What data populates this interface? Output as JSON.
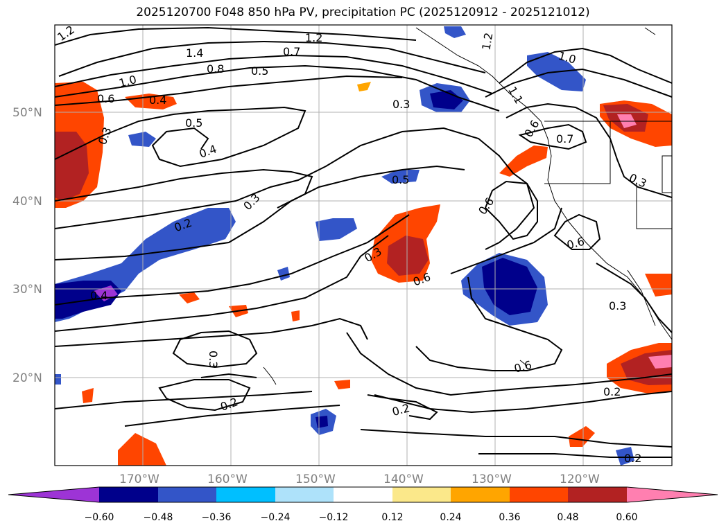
{
  "title": "2025120700 F048 850 hPa PV, precipitation PC (2025120912 - 2025121012)",
  "lat_labels": [
    "50°N",
    "40°N",
    "30°N",
    "20°N"
  ],
  "lon_labels": [
    "170°W",
    "160°W",
    "150°W",
    "140°W",
    "130°W",
    "120°W"
  ],
  "colorbar": {
    "colors": [
      "#9d34d6",
      "#00008b",
      "#3355c8",
      "#00bfff",
      "#aee2fa",
      "#ffffff",
      "#fbe88a",
      "#ffa500",
      "#ff4500",
      "#b22222",
      "#ff7fb0"
    ],
    "tick_labels": [
      "−0.60",
      "−0.48",
      "−0.36",
      "−0.24",
      "−0.12",
      "0.12",
      "0.24",
      "0.36",
      "0.48",
      "0.60"
    ]
  },
  "contour_labels": [
    "1.2",
    "1.2",
    "1.2",
    "1.4",
    "0.7",
    "0.8",
    "0.5",
    "1.0",
    "0.6",
    "0.4",
    "0.3",
    "0.5",
    "0.4",
    "0.3",
    "0.5",
    "0.2",
    "0.4",
    "0.3",
    "0.3",
    "0.6",
    "0.6",
    "0.6",
    "0.7",
    "0.6",
    "0.3",
    "0.3",
    "0.3",
    "0.6",
    "0.2",
    "0.2",
    "0.2",
    "1.0",
    "1.1",
    "0.2"
  ]
}
